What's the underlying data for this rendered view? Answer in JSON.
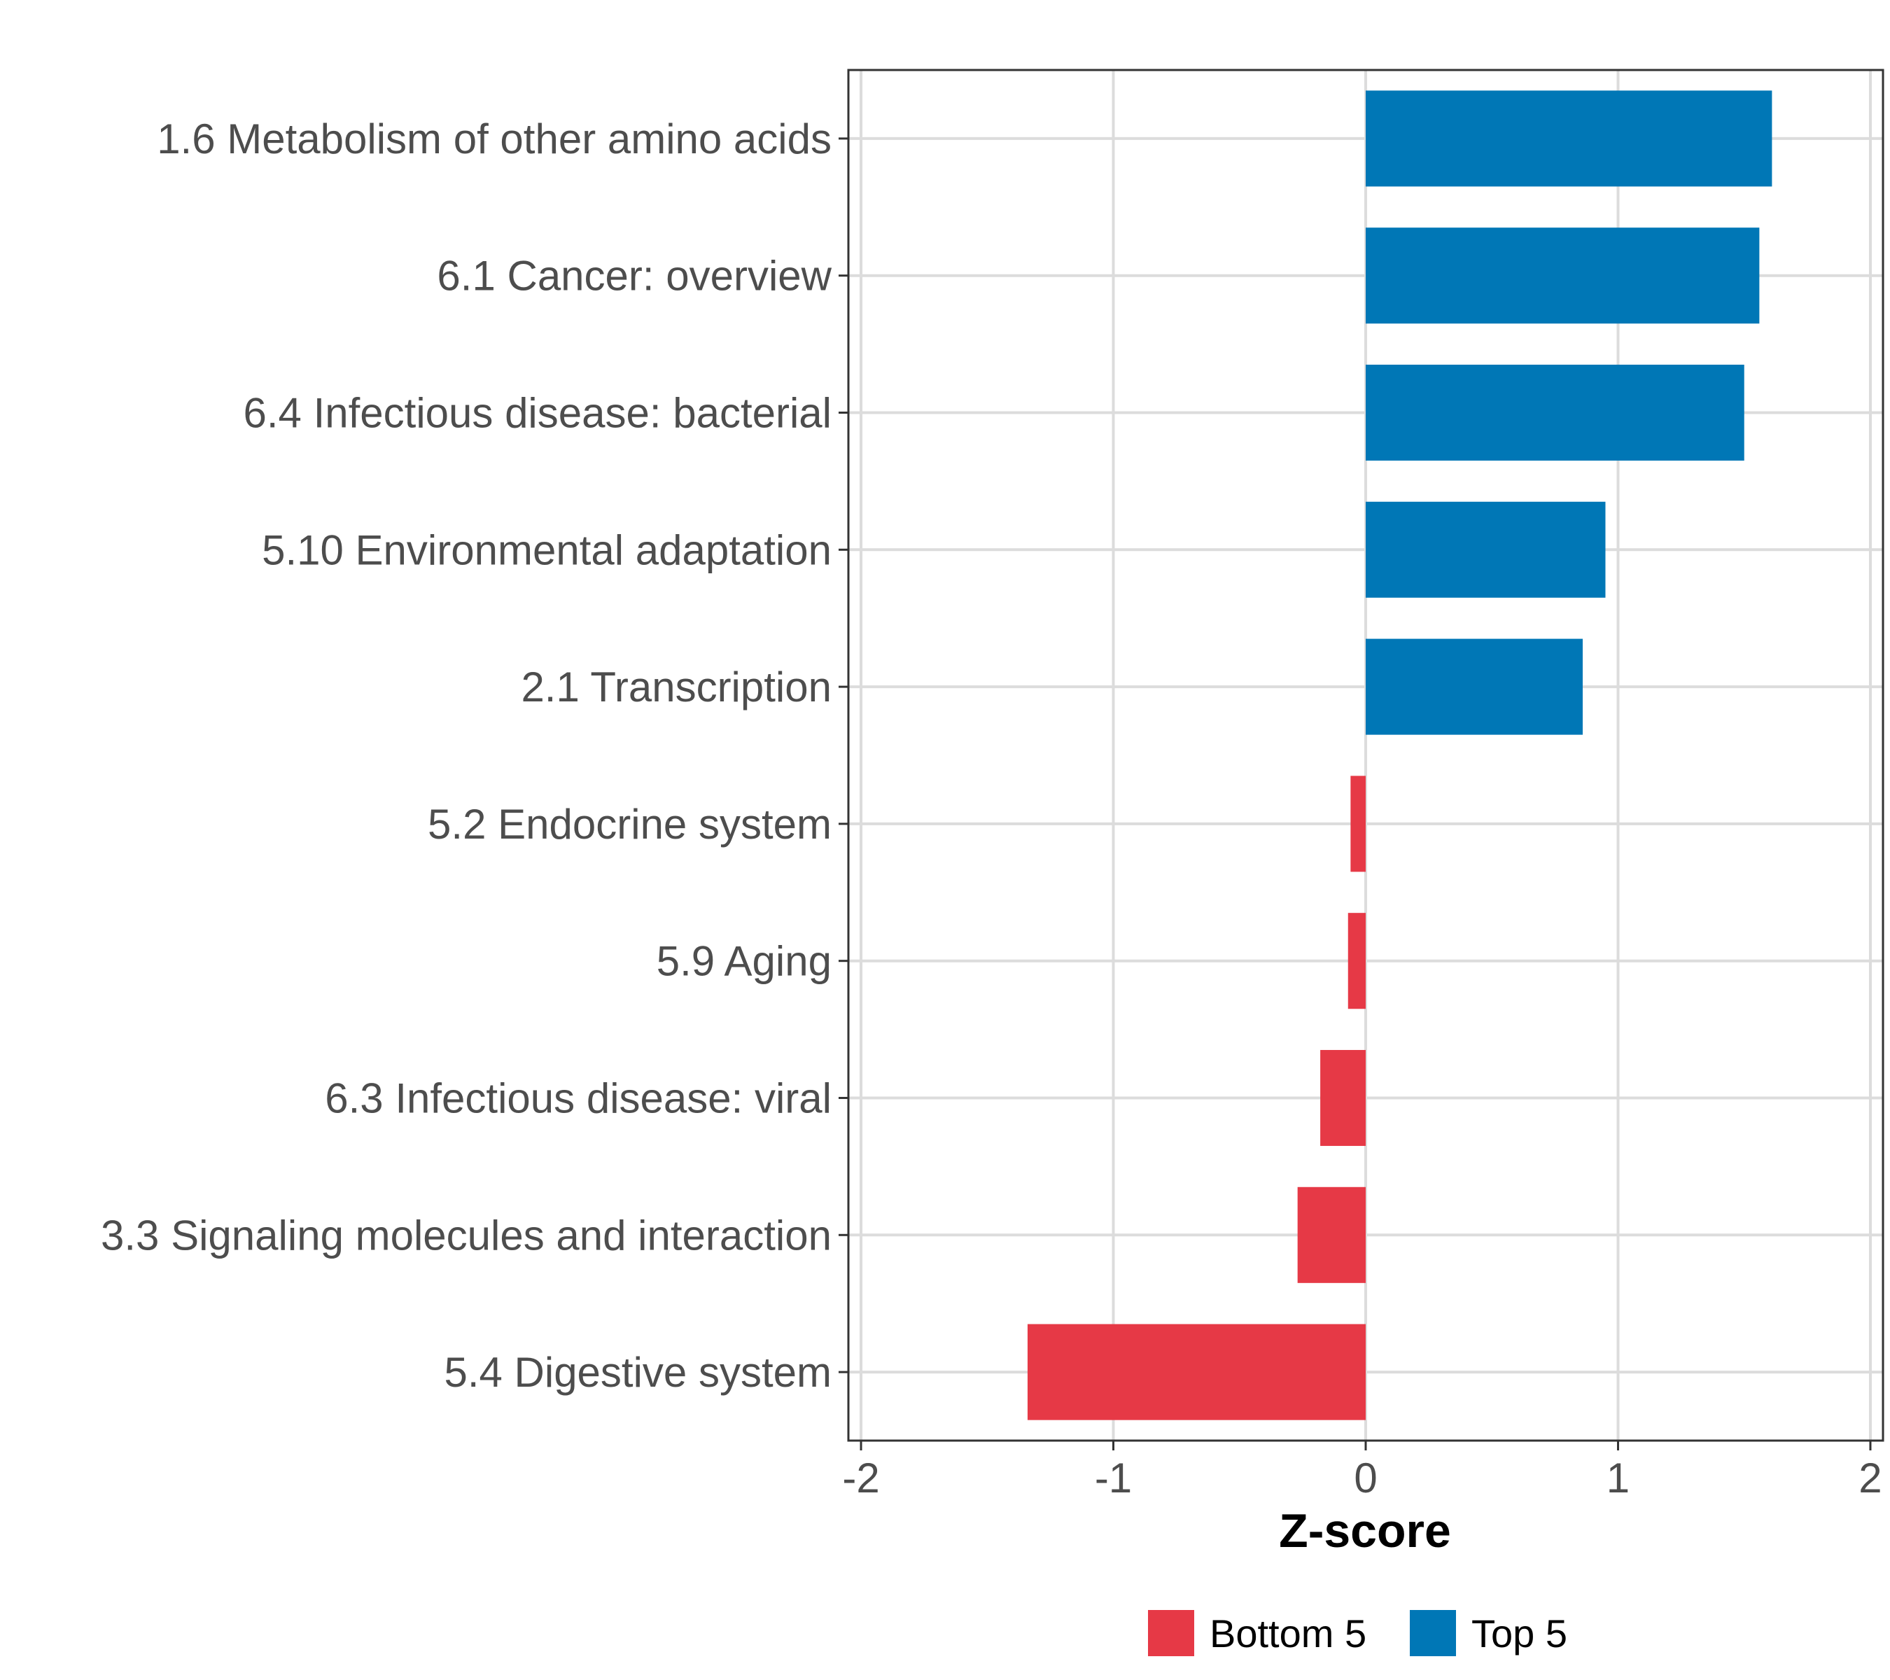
{
  "chart_data": {
    "type": "bar",
    "orientation": "horizontal",
    "title": "",
    "xlabel": "Z-score",
    "ylabel": "",
    "xlim": [
      -2.05,
      2.05
    ],
    "xticks": [
      -2,
      -1,
      0,
      1,
      2
    ],
    "xtick_labels": [
      "-2",
      "-1",
      "0",
      "1",
      "2"
    ],
    "grid": true,
    "legend_position": "bottom",
    "categories": [
      "1.6 Metabolism of other amino acids",
      "6.1 Cancer: overview",
      "6.4 Infectious disease: bacterial",
      "5.10 Environmental adaptation",
      "2.1 Transcription",
      "5.2 Endocrine system",
      "5.9 Aging",
      "6.3 Infectious disease: viral",
      "3.3 Signaling molecules and interaction",
      "5.4 Digestive system"
    ],
    "values": [
      1.61,
      1.56,
      1.5,
      0.95,
      0.86,
      -0.06,
      -0.07,
      -0.18,
      -0.27,
      -1.34
    ],
    "groups": [
      "Top 5",
      "Top 5",
      "Top 5",
      "Top 5",
      "Top 5",
      "Bottom 5",
      "Bottom 5",
      "Bottom 5",
      "Bottom 5",
      "Bottom 5"
    ],
    "legend": [
      {
        "label": "Bottom 5",
        "color": "#e63946"
      },
      {
        "label": "Top 5",
        "color": "#0077b6"
      }
    ]
  }
}
